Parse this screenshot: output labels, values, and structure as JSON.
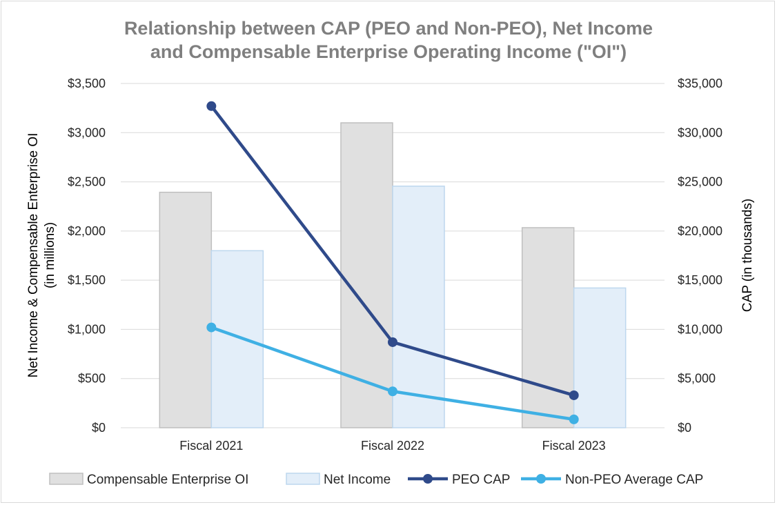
{
  "chart_data": {
    "type": "bar",
    "title_lines": [
      "Relationship between CAP (PEO and Non-PEO), Net Income",
      "and Compensable Enterprise Operating Income (\"OI\")"
    ],
    "categories": [
      "Fiscal 2021",
      "Fiscal 2022",
      "Fiscal 2023"
    ],
    "y_left": {
      "label_lines": [
        "Net Income & Compensable Enterprise OI",
        "(in millions)"
      ],
      "range": [
        0,
        3500
      ],
      "ticks": [
        0,
        500,
        1000,
        1500,
        2000,
        2500,
        3000,
        3500
      ],
      "tick_labels": [
        "$0",
        "$500",
        "$1,000",
        "$1,500",
        "$2,000",
        "$2,500",
        "$3,000",
        "$3,500"
      ]
    },
    "y_right": {
      "label": "CAP (in thousands)",
      "range": [
        0,
        35000
      ],
      "ticks": [
        0,
        5000,
        10000,
        15000,
        20000,
        25000,
        30000,
        35000
      ],
      "tick_labels": [
        "$0",
        "$5,000",
        "$10,000",
        "$15,000",
        "$20,000",
        "$25,000",
        "$30,000",
        "$35,000"
      ]
    },
    "gridlines": true,
    "legend_position": "bottom",
    "series": [
      {
        "name": "Compensable Enterprise OI",
        "kind": "bar",
        "axis": "left",
        "values": [
          2394,
          3100,
          2034
        ],
        "color": "#e0e0e0",
        "stroke": "#bfbfbf"
      },
      {
        "name": "Net Income",
        "kind": "bar",
        "axis": "left",
        "values": [
          1800,
          2456,
          1421
        ],
        "color": "#e3eef9",
        "stroke": "#bdd7ee"
      },
      {
        "name": "PEO CAP",
        "kind": "line",
        "axis": "right",
        "values": [
          32700,
          8700,
          3300
        ],
        "color": "#2f4a8a"
      },
      {
        "name": "Non-PEO Average CAP",
        "kind": "line",
        "axis": "right",
        "values": [
          10200,
          3700,
          850
        ],
        "color": "#3fb0e4"
      }
    ]
  }
}
